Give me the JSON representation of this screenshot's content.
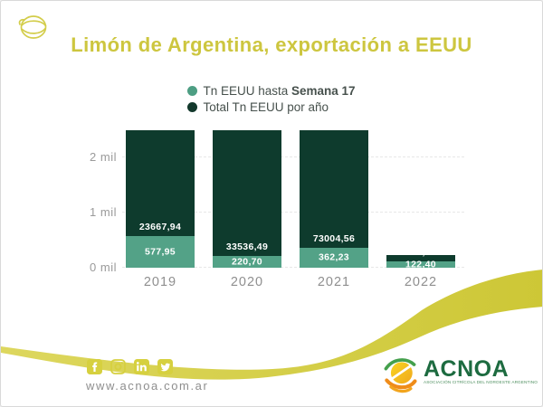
{
  "header": {
    "title": "Limón de Argentina, exportación a EEUU"
  },
  "legend": {
    "items": [
      {
        "dot_color": "#4d9e83",
        "text": "Tn EEUU hasta ",
        "bold": "Semana 17"
      },
      {
        "dot_color": "#13392c",
        "text": "Total Tn EEUU por año",
        "bold": ""
      }
    ]
  },
  "chart_data": {
    "type": "bar",
    "stacked": true,
    "title": "Limón de Argentina, exportación a EEUU",
    "categories": [
      "2019",
      "2020",
      "2021",
      "2022"
    ],
    "series": [
      {
        "name": "Tn EEUU hasta Semana 17",
        "color": "#53a287",
        "values": [
          577.95,
          220.7,
          362.23,
          122.4
        ],
        "labels": [
          "577,95",
          "220,70",
          "362,23",
          "122,40"
        ]
      },
      {
        "name": "Total Tn EEUU por año",
        "color": "#0e3b2d",
        "values": [
          23667.94,
          33536.49,
          73004.56,
          122.4
        ],
        "labels": [
          "23667,94",
          "33536,49",
          "73004,56",
          "122,40"
        ]
      }
    ],
    "yticks": [
      {
        "label": "0 mil",
        "value": 0
      },
      {
        "label": "1 mil",
        "value": 1000
      },
      {
        "label": "2 mil",
        "value": 2000
      }
    ],
    "ylim": [
      0,
      2500
    ],
    "grid": "horizontal-dashed",
    "note": "total bars exceed axis range and are clipped at plot top",
    "legend_position": "top-center"
  },
  "footer": {
    "website": "www.acnoa.com.ar",
    "social": [
      "facebook-icon",
      "instagram-icon",
      "linkedin-icon",
      "twitter-icon"
    ],
    "logo": {
      "name": "ACNOA",
      "tagline": "ASOCIACIÓN CITRÍCOLA DEL NOROESTE ARGENTINO"
    }
  },
  "colors": {
    "accent_yellow": "#cdc63f",
    "swoosh_yellow_light": "#ddd75e",
    "swoosh_yellow_dark": "#cdc736",
    "bar_total": "#0e3b2d",
    "bar_hasta": "#53a287",
    "axis_text": "#9a9a9a",
    "logo_green": "#1d6b40"
  }
}
